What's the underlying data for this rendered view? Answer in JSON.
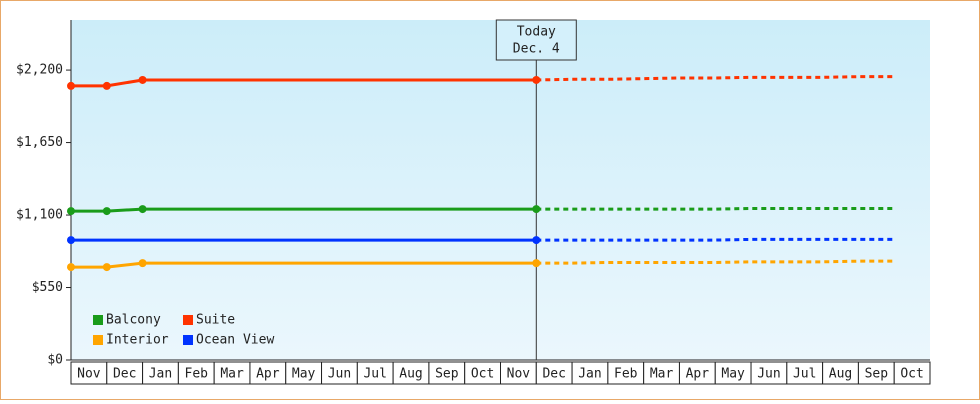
{
  "chart_data": {
    "type": "line",
    "categories": [
      "Nov",
      "Dec",
      "Jan",
      "Feb",
      "Mar",
      "Apr",
      "May",
      "Jun",
      "Jul",
      "Aug",
      "Sep",
      "Oct",
      "Nov",
      "Dec",
      "Jan",
      "Feb",
      "Mar",
      "Apr",
      "May",
      "Jun",
      "Jul",
      "Aug",
      "Sep",
      "Oct"
    ],
    "series": [
      {
        "name": "Balcony",
        "color": "#1a9c1a",
        "values": [
          1130,
          1130,
          1145,
          1145,
          1145,
          1145,
          1145,
          1145,
          1145,
          1145,
          1145,
          1145,
          1145,
          1145,
          null,
          null,
          null,
          null,
          null,
          null,
          null,
          null,
          null,
          null
        ],
        "forecast": [
          null,
          null,
          null,
          null,
          null,
          null,
          null,
          null,
          null,
          null,
          null,
          null,
          null,
          1145,
          1145,
          1145,
          1145,
          1145,
          1145,
          1150,
          1150,
          1150,
          1150,
          1150
        ]
      },
      {
        "name": "Suite",
        "color": "#ff3300",
        "values": [
          2080,
          2080,
          2125,
          2125,
          2125,
          2125,
          2125,
          2125,
          2125,
          2125,
          2125,
          2125,
          2125,
          2125,
          null,
          null,
          null,
          null,
          null,
          null,
          null,
          null,
          null,
          null
        ],
        "forecast": [
          null,
          null,
          null,
          null,
          null,
          null,
          null,
          null,
          null,
          null,
          null,
          null,
          null,
          2125,
          2130,
          2130,
          2135,
          2140,
          2140,
          2145,
          2145,
          2145,
          2150,
          2150
        ]
      },
      {
        "name": "Interior",
        "color": "#ffa500",
        "values": [
          705,
          705,
          735,
          735,
          735,
          735,
          735,
          735,
          735,
          735,
          735,
          735,
          735,
          735,
          null,
          null,
          null,
          null,
          null,
          null,
          null,
          null,
          null,
          null
        ],
        "forecast": [
          null,
          null,
          null,
          null,
          null,
          null,
          null,
          null,
          null,
          null,
          null,
          null,
          null,
          735,
          735,
          740,
          740,
          740,
          740,
          745,
          745,
          745,
          750,
          750
        ]
      },
      {
        "name": "Ocean View",
        "color": "#0033ff",
        "values": [
          910,
          910,
          910,
          910,
          910,
          910,
          910,
          910,
          910,
          910,
          910,
          910,
          910,
          910,
          null,
          null,
          null,
          null,
          null,
          null,
          null,
          null,
          null,
          null
        ],
        "forecast": [
          null,
          null,
          null,
          null,
          null,
          null,
          null,
          null,
          null,
          null,
          null,
          null,
          null,
          910,
          910,
          910,
          910,
          910,
          910,
          915,
          915,
          915,
          915,
          915
        ]
      }
    ],
    "annotation": [
      "Today",
      "Dec. 4"
    ],
    "ylim": [
      0,
      2580
    ],
    "yticks": [
      {
        "value": 0,
        "label": "$0"
      },
      {
        "value": 550,
        "label": "$550"
      },
      {
        "value": 1100,
        "label": "$1,100"
      },
      {
        "value": 1650,
        "label": "$1,650"
      },
      {
        "value": 2200,
        "label": "$2,200"
      }
    ]
  }
}
